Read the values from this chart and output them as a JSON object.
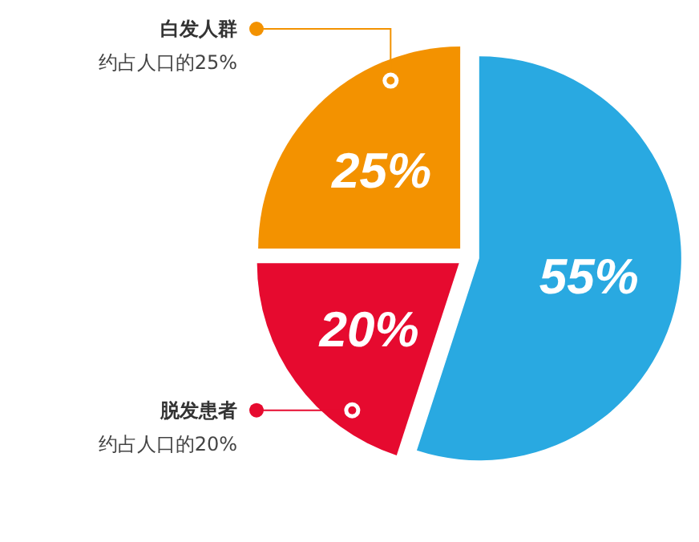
{
  "chart_data": {
    "type": "pie",
    "categories": [
      null,
      "脱发患者",
      "白发人群"
    ],
    "values": [
      55,
      20,
      25
    ],
    "colors": [
      "#29a9e1",
      "#e60a2f",
      "#f39200"
    ],
    "value_labels": [
      "55%",
      "20%",
      "25%"
    ],
    "annotations": [
      null,
      "约占人口的20%",
      "约占人口的25%"
    ],
    "legend": "left"
  }
}
